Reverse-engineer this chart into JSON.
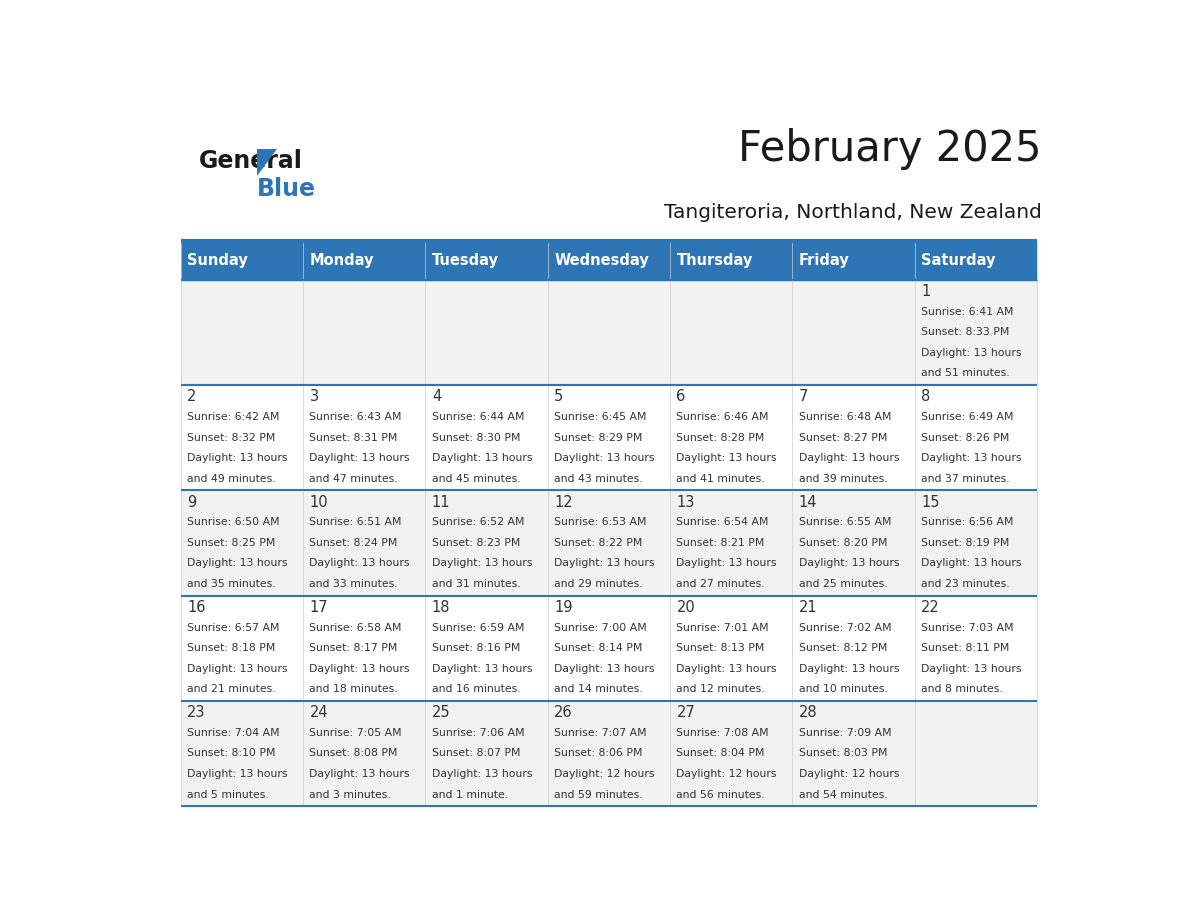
{
  "title": "February 2025",
  "subtitle": "Tangiteroria, Northland, New Zealand",
  "days_of_week": [
    "Sunday",
    "Monday",
    "Tuesday",
    "Wednesday",
    "Thursday",
    "Friday",
    "Saturday"
  ],
  "header_bg": "#2E75B6",
  "header_text": "#FFFFFF",
  "row_bg_odd": "#F2F2F2",
  "row_bg_even": "#FFFFFF",
  "separator_color": "#2E75B6",
  "text_color": "#333333",
  "day_num_color": "#333333",
  "calendar_data": [
    [
      null,
      null,
      null,
      null,
      null,
      null,
      {
        "day": 1,
        "sunrise": "6:41 AM",
        "sunset": "8:33 PM",
        "daylight_l1": "13 hours",
        "daylight_l2": "and 51 minutes."
      }
    ],
    [
      {
        "day": 2,
        "sunrise": "6:42 AM",
        "sunset": "8:32 PM",
        "daylight_l1": "13 hours",
        "daylight_l2": "and 49 minutes."
      },
      {
        "day": 3,
        "sunrise": "6:43 AM",
        "sunset": "8:31 PM",
        "daylight_l1": "13 hours",
        "daylight_l2": "and 47 minutes."
      },
      {
        "day": 4,
        "sunrise": "6:44 AM",
        "sunset": "8:30 PM",
        "daylight_l1": "13 hours",
        "daylight_l2": "and 45 minutes."
      },
      {
        "day": 5,
        "sunrise": "6:45 AM",
        "sunset": "8:29 PM",
        "daylight_l1": "13 hours",
        "daylight_l2": "and 43 minutes."
      },
      {
        "day": 6,
        "sunrise": "6:46 AM",
        "sunset": "8:28 PM",
        "daylight_l1": "13 hours",
        "daylight_l2": "and 41 minutes."
      },
      {
        "day": 7,
        "sunrise": "6:48 AM",
        "sunset": "8:27 PM",
        "daylight_l1": "13 hours",
        "daylight_l2": "and 39 minutes."
      },
      {
        "day": 8,
        "sunrise": "6:49 AM",
        "sunset": "8:26 PM",
        "daylight_l1": "13 hours",
        "daylight_l2": "and 37 minutes."
      }
    ],
    [
      {
        "day": 9,
        "sunrise": "6:50 AM",
        "sunset": "8:25 PM",
        "daylight_l1": "13 hours",
        "daylight_l2": "and 35 minutes."
      },
      {
        "day": 10,
        "sunrise": "6:51 AM",
        "sunset": "8:24 PM",
        "daylight_l1": "13 hours",
        "daylight_l2": "and 33 minutes."
      },
      {
        "day": 11,
        "sunrise": "6:52 AM",
        "sunset": "8:23 PM",
        "daylight_l1": "13 hours",
        "daylight_l2": "and 31 minutes."
      },
      {
        "day": 12,
        "sunrise": "6:53 AM",
        "sunset": "8:22 PM",
        "daylight_l1": "13 hours",
        "daylight_l2": "and 29 minutes."
      },
      {
        "day": 13,
        "sunrise": "6:54 AM",
        "sunset": "8:21 PM",
        "daylight_l1": "13 hours",
        "daylight_l2": "and 27 minutes."
      },
      {
        "day": 14,
        "sunrise": "6:55 AM",
        "sunset": "8:20 PM",
        "daylight_l1": "13 hours",
        "daylight_l2": "and 25 minutes."
      },
      {
        "day": 15,
        "sunrise": "6:56 AM",
        "sunset": "8:19 PM",
        "daylight_l1": "13 hours",
        "daylight_l2": "and 23 minutes."
      }
    ],
    [
      {
        "day": 16,
        "sunrise": "6:57 AM",
        "sunset": "8:18 PM",
        "daylight_l1": "13 hours",
        "daylight_l2": "and 21 minutes."
      },
      {
        "day": 17,
        "sunrise": "6:58 AM",
        "sunset": "8:17 PM",
        "daylight_l1": "13 hours",
        "daylight_l2": "and 18 minutes."
      },
      {
        "day": 18,
        "sunrise": "6:59 AM",
        "sunset": "8:16 PM",
        "daylight_l1": "13 hours",
        "daylight_l2": "and 16 minutes."
      },
      {
        "day": 19,
        "sunrise": "7:00 AM",
        "sunset": "8:14 PM",
        "daylight_l1": "13 hours",
        "daylight_l2": "and 14 minutes."
      },
      {
        "day": 20,
        "sunrise": "7:01 AM",
        "sunset": "8:13 PM",
        "daylight_l1": "13 hours",
        "daylight_l2": "and 12 minutes."
      },
      {
        "day": 21,
        "sunrise": "7:02 AM",
        "sunset": "8:12 PM",
        "daylight_l1": "13 hours",
        "daylight_l2": "and 10 minutes."
      },
      {
        "day": 22,
        "sunrise": "7:03 AM",
        "sunset": "8:11 PM",
        "daylight_l1": "13 hours",
        "daylight_l2": "and 8 minutes."
      }
    ],
    [
      {
        "day": 23,
        "sunrise": "7:04 AM",
        "sunset": "8:10 PM",
        "daylight_l1": "13 hours",
        "daylight_l2": "and 5 minutes."
      },
      {
        "day": 24,
        "sunrise": "7:05 AM",
        "sunset": "8:08 PM",
        "daylight_l1": "13 hours",
        "daylight_l2": "and 3 minutes."
      },
      {
        "day": 25,
        "sunrise": "7:06 AM",
        "sunset": "8:07 PM",
        "daylight_l1": "13 hours",
        "daylight_l2": "and 1 minute."
      },
      {
        "day": 26,
        "sunrise": "7:07 AM",
        "sunset": "8:06 PM",
        "daylight_l1": "12 hours",
        "daylight_l2": "and 59 minutes."
      },
      {
        "day": 27,
        "sunrise": "7:08 AM",
        "sunset": "8:04 PM",
        "daylight_l1": "12 hours",
        "daylight_l2": "and 56 minutes."
      },
      {
        "day": 28,
        "sunrise": "7:09 AM",
        "sunset": "8:03 PM",
        "daylight_l1": "12 hours",
        "daylight_l2": "and 54 minutes."
      },
      null
    ]
  ],
  "logo_text_general": "General",
  "logo_text_blue": "Blue"
}
